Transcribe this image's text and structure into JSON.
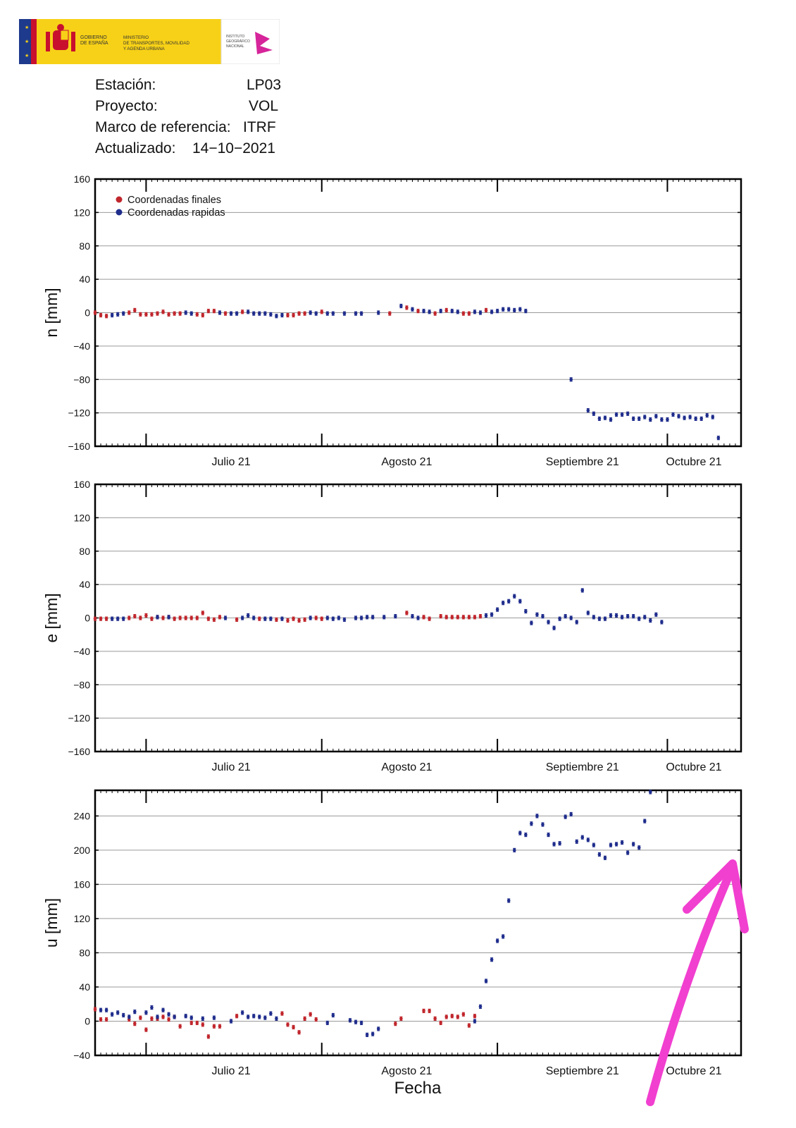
{
  "header": {
    "logo": {
      "line1": "GOBIERNO",
      "line2": "DE ESPAÑA",
      "min1": "MINISTERIO",
      "min2": "DE TRANSPORTES, MOVILIDAD",
      "min3": "Y AGENDA URBANA",
      "ign1": "INSTITUTO",
      "ign2": "GEOGRÁFICO",
      "ign3": "NACIONAL"
    },
    "station_label": "Estación:",
    "station_value": "LP03",
    "project_label": "Proyecto:",
    "project_value": "VOL",
    "frame_label": "Marco de referencia:",
    "frame_value": "ITRF",
    "updated_label": "Actualizado:",
    "updated_value": "14−10−2021"
  },
  "colors": {
    "final": "#c0262c",
    "rapid": "#1f2d8c",
    "arrow": "#f13fd0"
  },
  "legend": {
    "final": "Coordenadas finales",
    "rapid": "Coordenadas rapidas"
  },
  "xlabel": "Fecha",
  "xlim": [
    "2021-06-22",
    "2021-10-14"
  ],
  "months": [
    {
      "label": "Julio 21",
      "start": "2021-07-01",
      "center": "2021-07-16"
    },
    {
      "label": "Agosto 21",
      "start": "2021-08-01",
      "center": "2021-08-16"
    },
    {
      "label": "Septiembre 21",
      "start": "2021-09-01",
      "center": "2021-09-16"
    },
    {
      "label": "Octubre 21",
      "start": "2021-10-01",
      "center": "2021-10-16"
    }
  ],
  "chart_data": [
    {
      "type": "scatter",
      "ylabel": "n [mm]",
      "ylim": [
        -160,
        160
      ],
      "yticks": [
        -160,
        -120,
        -80,
        -40,
        0,
        40,
        80,
        120,
        160
      ],
      "grid": true,
      "legend_position": "top-left",
      "series": [
        {
          "name": "Coordenadas finales",
          "start": "2021-06-22",
          "values": [
            0,
            -3,
            -4,
            null,
            null,
            null,
            0,
            3,
            -2,
            -2,
            -2,
            -1,
            1,
            -2,
            -1,
            -1,
            null,
            null,
            -2,
            -3,
            2,
            2,
            null,
            -1,
            null,
            null,
            1,
            null,
            null,
            null,
            null,
            null,
            null,
            null,
            -3,
            -3,
            -1,
            -1,
            null,
            null,
            1,
            null,
            null,
            null,
            null,
            null,
            null,
            null,
            null,
            null,
            null,
            null,
            -1,
            null,
            null,
            6,
            null,
            2,
            null,
            null,
            -1,
            null,
            3,
            null,
            null,
            -1,
            -1,
            null,
            null,
            3,
            null,
            null
          ]
        },
        {
          "name": "Coordenadas rapidas",
          "start": "2021-06-22",
          "values": [
            null,
            null,
            null,
            -3,
            -2,
            -1,
            null,
            null,
            null,
            null,
            null,
            null,
            null,
            null,
            null,
            null,
            0,
            -1,
            null,
            null,
            null,
            null,
            0,
            null,
            -1,
            -1,
            null,
            1,
            -1,
            -1,
            -1,
            -2,
            -4,
            -3,
            null,
            null,
            null,
            null,
            0,
            -1,
            null,
            -1,
            -1,
            null,
            -1,
            null,
            -1,
            -1,
            null,
            null,
            0,
            null,
            null,
            null,
            8,
            null,
            4,
            null,
            2,
            1,
            null,
            2,
            null,
            2,
            1,
            null,
            null,
            1,
            0,
            null,
            1,
            2,
            4,
            4,
            3,
            4,
            2,
            null,
            null,
            null,
            null,
            null,
            null,
            null,
            -80,
            null,
            null,
            -117,
            -121,
            -127,
            -126,
            -128,
            -122,
            -122,
            -121,
            -127,
            -127,
            -125,
            -128,
            -124,
            -128,
            -128,
            -122,
            -124,
            -126,
            -125,
            -127,
            -127,
            -123,
            -125,
            -150
          ]
        }
      ]
    },
    {
      "type": "scatter",
      "ylabel": "e [mm]",
      "ylim": [
        -160,
        160
      ],
      "yticks": [
        -160,
        -120,
        -80,
        -40,
        0,
        40,
        80,
        120,
        160
      ],
      "grid": true,
      "series": [
        {
          "name": "Coordenadas finales",
          "start": "2021-06-22",
          "values": [
            -1,
            -1,
            -1,
            null,
            null,
            null,
            0,
            2,
            0,
            3,
            -1,
            1,
            0,
            1,
            -1,
            0,
            0,
            0,
            0,
            6,
            -1,
            -2,
            1,
            null,
            null,
            -2,
            null,
            null,
            null,
            -1,
            null,
            null,
            -2,
            null,
            -3,
            -1,
            -3,
            -2,
            null,
            0,
            -1,
            null,
            null,
            null,
            null,
            null,
            null,
            null,
            null,
            null,
            null,
            null,
            null,
            null,
            null,
            6,
            null,
            null,
            1,
            -1,
            null,
            2,
            1,
            1,
            1,
            1,
            1,
            1,
            2,
            null,
            null,
            null,
            null,
            null,
            null,
            null,
            null,
            null,
            null,
            null,
            null,
            null,
            null,
            null,
            null,
            null,
            null
          ]
        },
        {
          "name": "Coordenadas rapidas",
          "start": "2021-06-22",
          "values": [
            null,
            null,
            null,
            -1,
            -1,
            -1,
            null,
            null,
            null,
            null,
            null,
            1,
            null,
            1,
            null,
            null,
            null,
            null,
            null,
            null,
            null,
            null,
            null,
            0,
            null,
            null,
            0,
            3,
            0,
            null,
            -1,
            -1,
            null,
            -1,
            null,
            null,
            null,
            null,
            0,
            null,
            null,
            0,
            -1,
            0,
            -2,
            null,
            0,
            0,
            1,
            1,
            null,
            1,
            null,
            2,
            null,
            null,
            2,
            0,
            null,
            null,
            null,
            null,
            null,
            null,
            null,
            null,
            null,
            null,
            null,
            3,
            4,
            10,
            18,
            20,
            26,
            20,
            8,
            -6,
            4,
            2,
            -5,
            -12,
            -1,
            2,
            0,
            -5,
            33,
            6,
            1,
            -1,
            -1,
            3,
            3,
            1,
            2,
            2,
            -1,
            1,
            -3,
            4,
            -5
          ]
        }
      ]
    },
    {
      "type": "scatter",
      "ylabel": "u [mm]",
      "ylim": [
        -40,
        270
      ],
      "yticks": [
        -40,
        0,
        40,
        80,
        120,
        160,
        200,
        240
      ],
      "grid": true,
      "series": [
        {
          "name": "Coordenadas finales",
          "start": "2021-06-22",
          "values": [
            14,
            2,
            2,
            null,
            null,
            null,
            2,
            -3,
            4,
            -10,
            3,
            3,
            5,
            2,
            5,
            -6,
            null,
            -2,
            -2,
            -4,
            -18,
            -6,
            -6,
            null,
            null,
            6,
            null,
            null,
            null,
            null,
            null,
            null,
            null,
            9,
            -4,
            -7,
            -13,
            3,
            8,
            2,
            null,
            null,
            null,
            null,
            null,
            null,
            null,
            null,
            null,
            null,
            null,
            null,
            null,
            -3,
            3,
            null,
            null,
            null,
            12,
            12,
            3,
            -2,
            5,
            6,
            5,
            8,
            -5,
            6,
            null,
            null,
            null,
            null,
            null,
            null,
            null,
            null,
            null,
            null,
            null,
            null,
            null,
            null,
            null,
            null,
            null,
            null,
            null
          ]
        },
        {
          "name": "Coordenadas rapidas",
          "start": "2021-06-22",
          "values": [
            null,
            13,
            13,
            8,
            10,
            7,
            5,
            11,
            null,
            10,
            16,
            5,
            13,
            8,
            5,
            null,
            6,
            4,
            null,
            3,
            null,
            4,
            null,
            null,
            0,
            null,
            10,
            5,
            6,
            5,
            4,
            9,
            3,
            null,
            null,
            null,
            null,
            null,
            null,
            null,
            null,
            -2,
            7,
            null,
            null,
            1,
            -1,
            -2,
            -16,
            -15,
            -9,
            null,
            null,
            null,
            null,
            null,
            null,
            null,
            null,
            null,
            null,
            null,
            null,
            null,
            null,
            null,
            null,
            0,
            17,
            47,
            72,
            94,
            99,
            141,
            200,
            220,
            218,
            231,
            240,
            230,
            218,
            207,
            208,
            239,
            242,
            210,
            215,
            212,
            206,
            195,
            191,
            206,
            207,
            209,
            197,
            207,
            203,
            234,
            268
          ]
        }
      ]
    }
  ]
}
